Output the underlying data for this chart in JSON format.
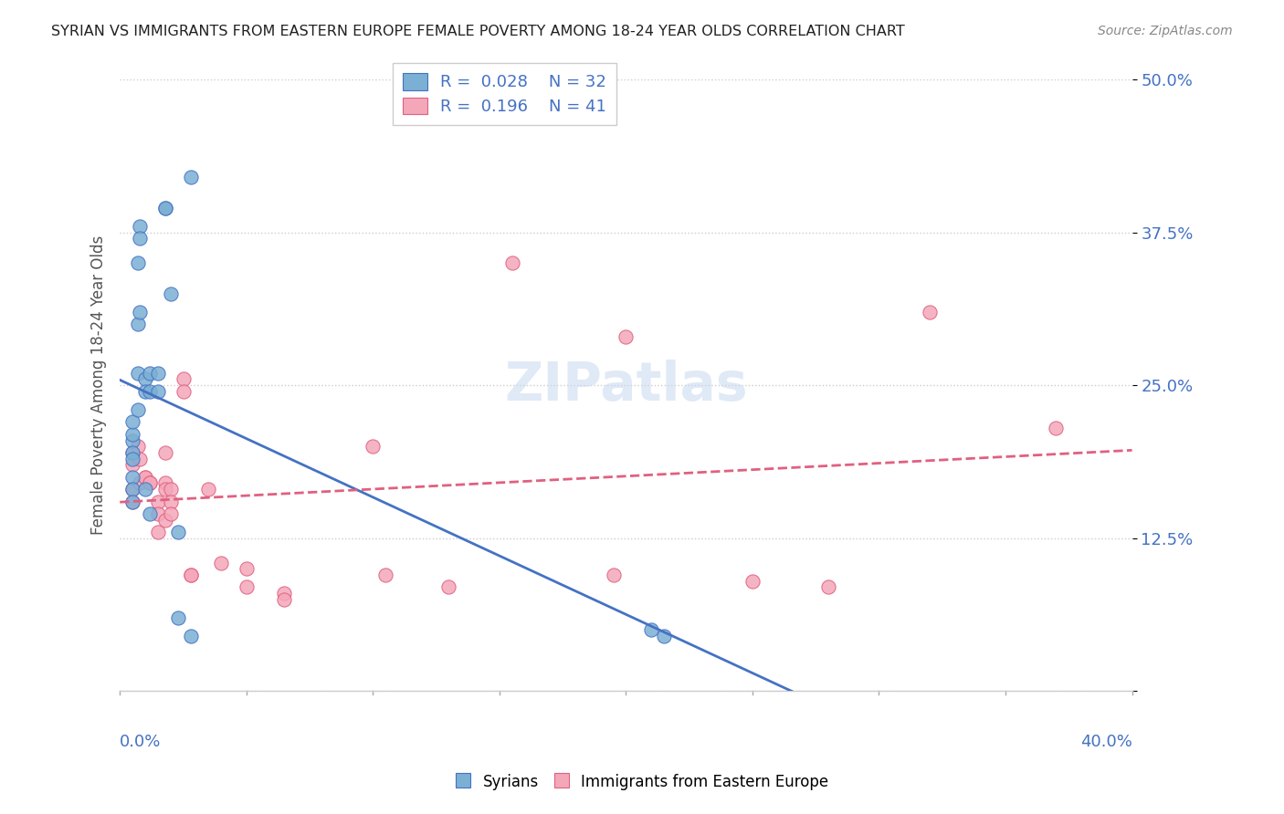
{
  "title": "SYRIAN VS IMMIGRANTS FROM EASTERN EUROPE FEMALE POVERTY AMONG 18-24 YEAR OLDS CORRELATION CHART",
  "source": "Source: ZipAtlas.com",
  "ylabel": "Female Poverty Among 18-24 Year Olds",
  "xlim": [
    0.0,
    0.4
  ],
  "ylim": [
    0.0,
    0.5
  ],
  "background_color": "#ffffff",
  "watermark": "ZIPatlas",
  "blue_color": "#7bafd4",
  "pink_color": "#f4a7b9",
  "blue_line_color": "#4472c4",
  "pink_line_color": "#e06080",
  "text_color": "#4472c4",
  "syrians_x": [
    0.005,
    0.005,
    0.005,
    0.005,
    0.005,
    0.005,
    0.005,
    0.005,
    0.007,
    0.007,
    0.007,
    0.007,
    0.008,
    0.008,
    0.008,
    0.01,
    0.01,
    0.01,
    0.012,
    0.012,
    0.012,
    0.015,
    0.015,
    0.018,
    0.018,
    0.02,
    0.023,
    0.023,
    0.028,
    0.028,
    0.21,
    0.215
  ],
  "syrians_y": [
    0.205,
    0.195,
    0.19,
    0.21,
    0.22,
    0.175,
    0.165,
    0.155,
    0.35,
    0.3,
    0.26,
    0.23,
    0.38,
    0.37,
    0.31,
    0.255,
    0.245,
    0.165,
    0.26,
    0.245,
    0.145,
    0.26,
    0.245,
    0.395,
    0.395,
    0.325,
    0.06,
    0.13,
    0.42,
    0.045,
    0.05,
    0.045
  ],
  "eastern_x": [
    0.005,
    0.005,
    0.005,
    0.005,
    0.007,
    0.008,
    0.008,
    0.01,
    0.01,
    0.012,
    0.012,
    0.015,
    0.015,
    0.015,
    0.018,
    0.018,
    0.018,
    0.018,
    0.02,
    0.02,
    0.02,
    0.025,
    0.025,
    0.028,
    0.028,
    0.035,
    0.04,
    0.05,
    0.05,
    0.065,
    0.065,
    0.1,
    0.105,
    0.13,
    0.155,
    0.195,
    0.2,
    0.25,
    0.28,
    0.32,
    0.37
  ],
  "eastern_y": [
    0.195,
    0.185,
    0.165,
    0.155,
    0.2,
    0.19,
    0.17,
    0.175,
    0.175,
    0.17,
    0.17,
    0.155,
    0.145,
    0.13,
    0.195,
    0.17,
    0.165,
    0.14,
    0.165,
    0.155,
    0.145,
    0.255,
    0.245,
    0.095,
    0.095,
    0.165,
    0.105,
    0.1,
    0.085,
    0.08,
    0.075,
    0.2,
    0.095,
    0.085,
    0.35,
    0.095,
    0.29,
    0.09,
    0.085,
    0.31,
    0.215
  ]
}
